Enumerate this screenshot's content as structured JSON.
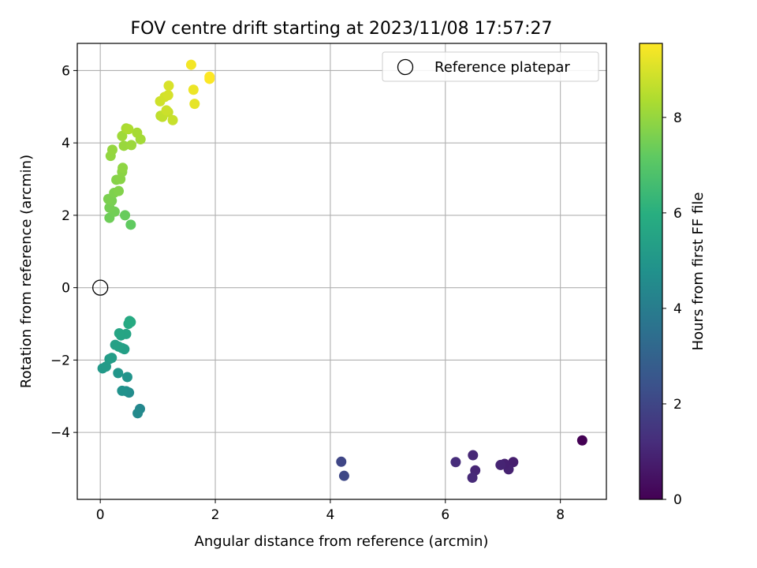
{
  "chart_data": {
    "type": "scatter",
    "title": "FOV centre drift starting at 2023/11/08 17:57:27",
    "xlabel": "Angular distance from reference (arcmin)",
    "ylabel": "Rotation from reference (arcmin)",
    "xlim": [
      -0.4,
      8.8
    ],
    "ylim": [
      -5.85,
      6.75
    ],
    "xticks": [
      0,
      2,
      4,
      6,
      8
    ],
    "xtick_labels": [
      "0",
      "2",
      "4",
      "6",
      "8"
    ],
    "yticks": [
      -4,
      -2,
      0,
      2,
      4,
      6
    ],
    "ytick_labels": [
      "−4",
      "−2",
      "0",
      "2",
      "4",
      "6"
    ],
    "grid": true,
    "legend": {
      "placement": "top-right",
      "entries": [
        "Reference platepar"
      ]
    },
    "reference_point": {
      "x": 0,
      "y": 0,
      "label": "Reference platepar"
    },
    "colorbar": {
      "label": "Hours from first FF file",
      "colormap": "viridis",
      "range": [
        0,
        9.55
      ],
      "ticks": [
        0,
        2,
        4,
        6,
        8
      ],
      "tick_labels": [
        "0",
        "2",
        "4",
        "6",
        "8"
      ]
    },
    "series": [
      {
        "points": [
          {
            "x": 8.38,
            "y": -4.22,
            "c": 0.0
          },
          {
            "x": 7.18,
            "y": -4.82,
            "c": 0.8
          },
          {
            "x": 7.1,
            "y": -5.02,
            "c": 0.9
          },
          {
            "x": 7.03,
            "y": -4.87,
            "c": 0.85
          },
          {
            "x": 6.96,
            "y": -4.9,
            "c": 0.95
          },
          {
            "x": 6.52,
            "y": -5.05,
            "c": 1.0
          },
          {
            "x": 6.48,
            "y": -4.63,
            "c": 1.05
          },
          {
            "x": 6.47,
            "y": -5.25,
            "c": 1.1
          },
          {
            "x": 6.18,
            "y": -4.82,
            "c": 1.2
          },
          {
            "x": 4.19,
            "y": -4.81,
            "c": 2.0
          },
          {
            "x": 4.24,
            "y": -5.2,
            "c": 2.05
          },
          {
            "x": 0.69,
            "y": -3.35,
            "c": 4.4
          },
          {
            "x": 0.65,
            "y": -3.47,
            "c": 4.5
          },
          {
            "x": 0.5,
            "y": -2.9,
            "c": 4.6
          },
          {
            "x": 0.45,
            "y": -2.86,
            "c": 4.7
          },
          {
            "x": 0.38,
            "y": -2.85,
            "c": 4.8
          },
          {
            "x": 0.47,
            "y": -2.47,
            "c": 4.9
          },
          {
            "x": 0.31,
            "y": -2.36,
            "c": 5.0
          },
          {
            "x": 0.04,
            "y": -2.23,
            "c": 5.1
          },
          {
            "x": 0.1,
            "y": -2.18,
            "c": 5.15
          },
          {
            "x": 0.16,
            "y": -1.97,
            "c": 5.2
          },
          {
            "x": 0.2,
            "y": -1.94,
            "c": 5.25
          },
          {
            "x": 0.38,
            "y": -1.67,
            "c": 5.3
          },
          {
            "x": 0.42,
            "y": -1.7,
            "c": 5.35
          },
          {
            "x": 0.26,
            "y": -1.58,
            "c": 5.4
          },
          {
            "x": 0.32,
            "y": -1.63,
            "c": 5.45
          },
          {
            "x": 0.36,
            "y": -1.32,
            "c": 5.5
          },
          {
            "x": 0.45,
            "y": -1.28,
            "c": 5.55
          },
          {
            "x": 0.33,
            "y": -1.26,
            "c": 5.6
          },
          {
            "x": 0.51,
            "y": -0.92,
            "c": 5.7
          },
          {
            "x": 0.49,
            "y": -1.0,
            "c": 5.75
          },
          {
            "x": 0.53,
            "y": -0.95,
            "c": 5.8
          },
          {
            "x": 0.53,
            "y": 1.74,
            "c": 7.2
          },
          {
            "x": 0.43,
            "y": 2.0,
            "c": 7.3
          },
          {
            "x": 0.16,
            "y": 1.93,
            "c": 7.4
          },
          {
            "x": 0.25,
            "y": 2.1,
            "c": 7.45
          },
          {
            "x": 0.16,
            "y": 2.21,
            "c": 7.5
          },
          {
            "x": 0.2,
            "y": 2.4,
            "c": 7.55
          },
          {
            "x": 0.14,
            "y": 2.45,
            "c": 7.6
          },
          {
            "x": 0.24,
            "y": 2.62,
            "c": 7.65
          },
          {
            "x": 0.32,
            "y": 2.67,
            "c": 7.7
          },
          {
            "x": 0.28,
            "y": 2.98,
            "c": 7.75
          },
          {
            "x": 0.35,
            "y": 3.0,
            "c": 7.8
          },
          {
            "x": 0.38,
            "y": 3.2,
            "c": 7.85
          },
          {
            "x": 0.39,
            "y": 3.31,
            "c": 7.9
          },
          {
            "x": 0.18,
            "y": 3.64,
            "c": 7.95
          },
          {
            "x": 0.21,
            "y": 3.81,
            "c": 8.0
          },
          {
            "x": 0.41,
            "y": 3.92,
            "c": 8.05
          },
          {
            "x": 0.54,
            "y": 3.94,
            "c": 8.1
          },
          {
            "x": 0.38,
            "y": 4.19,
            "c": 8.15
          },
          {
            "x": 0.7,
            "y": 4.1,
            "c": 8.2
          },
          {
            "x": 0.64,
            "y": 4.28,
            "c": 8.25
          },
          {
            "x": 0.45,
            "y": 4.4,
            "c": 8.3
          },
          {
            "x": 0.49,
            "y": 4.38,
            "c": 8.35
          },
          {
            "x": 1.05,
            "y": 4.75,
            "c": 8.6
          },
          {
            "x": 1.08,
            "y": 4.72,
            "c": 8.65
          },
          {
            "x": 1.18,
            "y": 4.85,
            "c": 8.7
          },
          {
            "x": 1.26,
            "y": 4.63,
            "c": 8.75
          },
          {
            "x": 1.15,
            "y": 4.9,
            "c": 8.8
          },
          {
            "x": 1.04,
            "y": 5.15,
            "c": 8.85
          },
          {
            "x": 1.12,
            "y": 5.27,
            "c": 8.9
          },
          {
            "x": 1.18,
            "y": 5.32,
            "c": 8.95
          },
          {
            "x": 1.19,
            "y": 5.58,
            "c": 9.0
          },
          {
            "x": 1.64,
            "y": 5.08,
            "c": 9.2
          },
          {
            "x": 1.62,
            "y": 5.47,
            "c": 9.3
          },
          {
            "x": 1.58,
            "y": 6.16,
            "c": 9.4
          },
          {
            "x": 1.9,
            "y": 5.77,
            "c": 9.5
          },
          {
            "x": 1.9,
            "y": 5.83,
            "c": 9.55
          }
        ]
      }
    ]
  }
}
